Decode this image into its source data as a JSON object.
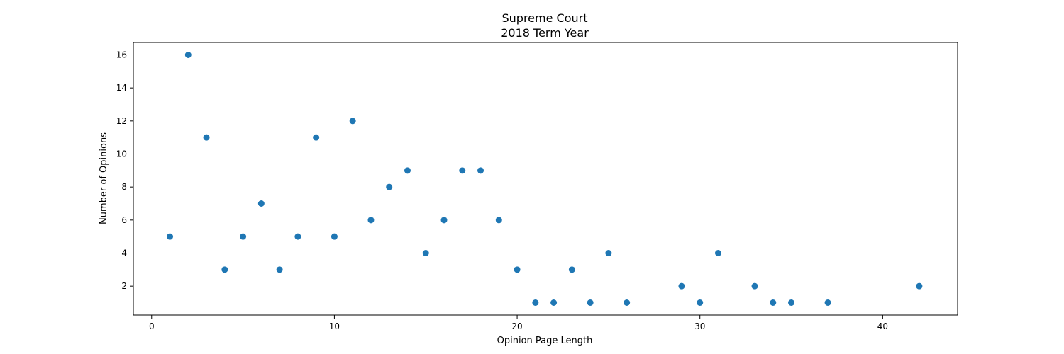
{
  "chart_data": {
    "type": "scatter",
    "title": "Supreme Court",
    "subtitle": "2018 Term Year",
    "xlabel": "Opinion Page Length",
    "ylabel": "Number of Opinions",
    "xlim": [
      -1,
      44.1
    ],
    "ylim": [
      0.25,
      16.75
    ],
    "xticks": [
      0,
      10,
      20,
      30,
      40
    ],
    "yticks": [
      2,
      4,
      6,
      8,
      10,
      12,
      14,
      16
    ],
    "grid": false,
    "marker_color": "#1f77b4",
    "points": [
      {
        "x": 1,
        "y": 5
      },
      {
        "x": 2,
        "y": 16
      },
      {
        "x": 3,
        "y": 11
      },
      {
        "x": 4,
        "y": 3
      },
      {
        "x": 5,
        "y": 5
      },
      {
        "x": 6,
        "y": 7
      },
      {
        "x": 7,
        "y": 3
      },
      {
        "x": 8,
        "y": 5
      },
      {
        "x": 9,
        "y": 11
      },
      {
        "x": 10,
        "y": 5
      },
      {
        "x": 11,
        "y": 12
      },
      {
        "x": 12,
        "y": 6
      },
      {
        "x": 13,
        "y": 8
      },
      {
        "x": 14,
        "y": 9
      },
      {
        "x": 15,
        "y": 4
      },
      {
        "x": 16,
        "y": 6
      },
      {
        "x": 17,
        "y": 9
      },
      {
        "x": 18,
        "y": 9
      },
      {
        "x": 19,
        "y": 6
      },
      {
        "x": 20,
        "y": 3
      },
      {
        "x": 21,
        "y": 1
      },
      {
        "x": 22,
        "y": 1
      },
      {
        "x": 23,
        "y": 3
      },
      {
        "x": 24,
        "y": 1
      },
      {
        "x": 25,
        "y": 4
      },
      {
        "x": 26,
        "y": 1
      },
      {
        "x": 29,
        "y": 2
      },
      {
        "x": 30,
        "y": 1
      },
      {
        "x": 31,
        "y": 4
      },
      {
        "x": 33,
        "y": 2
      },
      {
        "x": 34,
        "y": 1
      },
      {
        "x": 35,
        "y": 1
      },
      {
        "x": 37,
        "y": 1
      },
      {
        "x": 42,
        "y": 2
      }
    ]
  }
}
